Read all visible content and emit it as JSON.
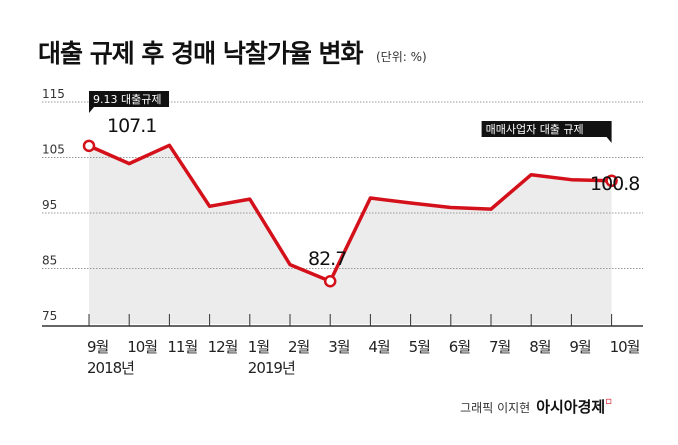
{
  "chart_data": {
    "type": "line",
    "title": "대출 규제 후 경매 낙찰가율 변화",
    "unit": "(단위: %)",
    "categories": [
      "9월",
      "10월",
      "11월",
      "12월",
      "1월",
      "2월",
      "3월",
      "4월",
      "5월",
      "6월",
      "7월",
      "8월",
      "9월",
      "10월"
    ],
    "year_labels": [
      {
        "index": 0,
        "label": "2018년"
      },
      {
        "index": 4,
        "label": "2019년"
      }
    ],
    "values": [
      107.1,
      103.9,
      107.2,
      96.2,
      97.5,
      85.7,
      82.7,
      97.7,
      96.8,
      96.0,
      95.7,
      101.9,
      101.0,
      100.8
    ],
    "ylim": [
      75,
      115
    ],
    "yticks": [
      75,
      85,
      95,
      105,
      115
    ],
    "data_labels": [
      {
        "index": 0,
        "label": "107.1"
      },
      {
        "index": 6,
        "label": "82.7"
      },
      {
        "index": 13,
        "label": "100.8"
      }
    ],
    "annotations": [
      {
        "index": 0,
        "label": "9.13 대출규제"
      },
      {
        "index": 13,
        "label": "매매사업자 대출 규제"
      }
    ],
    "colors": {
      "line": "#d4101b",
      "area": "#ececec"
    }
  },
  "credit": {
    "text": "그래픽 이지현",
    "brand": "아시아경제",
    "brand_mark": "ㅁ"
  }
}
